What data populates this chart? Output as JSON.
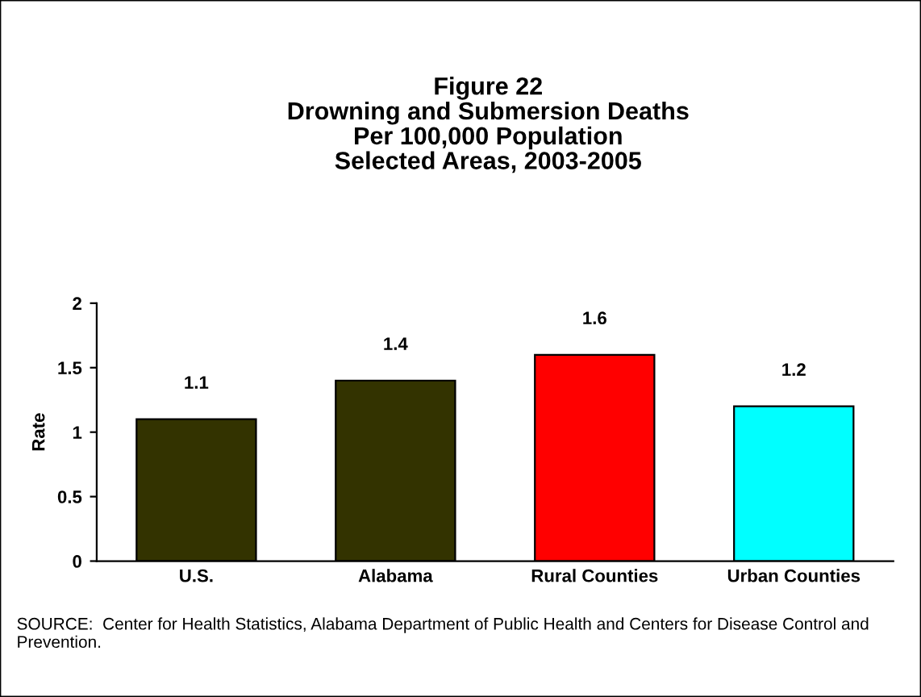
{
  "chart_data": {
    "type": "bar",
    "title": "Figure 22\nDrowning and Submersion Deaths\nPer 100,000 Population\nSelected Areas, 2003-2005",
    "ylabel": "Rate",
    "categories": [
      "U.S.",
      "Alabama",
      "Rural Counties",
      "Urban Counties"
    ],
    "values": [
      1.1,
      1.4,
      1.6,
      1.2
    ],
    "colors": [
      "#333300",
      "#333300",
      "#ff0000",
      "#00ffff"
    ],
    "ylim": [
      0,
      2
    ],
    "yticks": [
      0,
      0.5,
      1,
      1.5,
      2
    ],
    "data_labels": true,
    "grid": false,
    "legend": false,
    "annotations": [
      "SOURCE:  Center for Health Statistics, Alabama Department of Public Health and Centers for Disease Control and Prevention."
    ]
  }
}
